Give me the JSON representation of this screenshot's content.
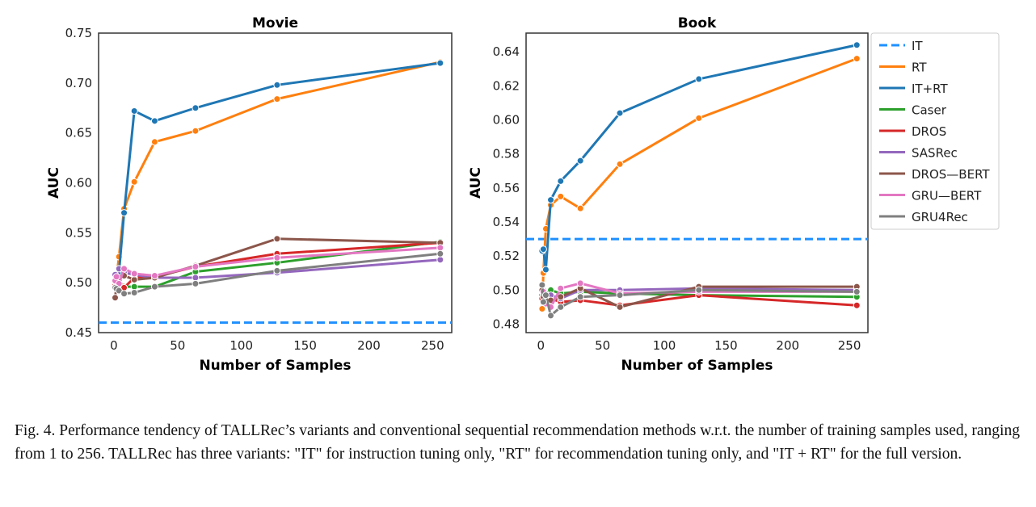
{
  "chart_data": [
    {
      "type": "line",
      "title": "Movie",
      "xlabel": "Number of Samples",
      "ylabel": "AUC",
      "xlim": [
        -12,
        265
      ],
      "ylim": [
        0.45,
        0.75
      ],
      "xticks": [
        0,
        50,
        100,
        150,
        200,
        250
      ],
      "yticks": [
        0.45,
        0.5,
        0.55,
        0.6,
        0.65,
        0.7,
        0.75
      ],
      "x": [
        1,
        2,
        4,
        8,
        16,
        32,
        64,
        128,
        256
      ],
      "series": [
        {
          "name": "IT",
          "values": [
            0.46,
            0.46,
            0.46,
            0.46,
            0.46,
            0.46,
            0.46,
            0.46,
            0.46
          ],
          "dashed": true
        },
        {
          "name": "RT",
          "values": [
            0.5,
            0.505,
            0.526,
            0.574,
            0.601,
            0.641,
            0.652,
            0.684,
            0.721
          ]
        },
        {
          "name": "IT+RT",
          "values": [
            0.495,
            0.5,
            0.51,
            0.57,
            0.672,
            0.662,
            0.675,
            0.698,
            0.72
          ]
        },
        {
          "name": "Caser",
          "values": [
            0.497,
            0.495,
            0.496,
            0.496,
            0.496,
            0.496,
            0.511,
            0.52,
            0.541
          ]
        },
        {
          "name": "DROS",
          "values": [
            0.497,
            0.5,
            0.503,
            0.495,
            0.505,
            0.506,
            0.516,
            0.529,
            0.54
          ]
        },
        {
          "name": "SASRec",
          "values": [
            0.508,
            0.503,
            0.514,
            0.51,
            0.508,
            0.505,
            0.505,
            0.51,
            0.523
          ]
        },
        {
          "name": "DROS—BERT",
          "values": [
            0.485,
            0.497,
            0.505,
            0.507,
            0.503,
            0.505,
            0.517,
            0.544,
            0.54
          ]
        },
        {
          "name": "GRU—BERT",
          "values": [
            0.502,
            0.506,
            0.499,
            0.514,
            0.509,
            0.507,
            0.516,
            0.525,
            0.535
          ]
        },
        {
          "name": "GRU4Rec",
          "values": [
            0.495,
            0.494,
            0.492,
            0.489,
            0.49,
            0.496,
            0.499,
            0.512,
            0.529
          ]
        }
      ]
    },
    {
      "type": "line",
      "title": "Book",
      "xlabel": "Number of Samples",
      "ylabel": "AUC",
      "xlim": [
        -12,
        265
      ],
      "ylim": [
        0.475,
        0.651
      ],
      "xticks": [
        0,
        50,
        100,
        150,
        200,
        250
      ],
      "yticks": [
        0.48,
        0.5,
        0.52,
        0.54,
        0.56,
        0.58,
        0.6,
        0.62,
        0.64
      ],
      "x": [
        1,
        2,
        4,
        8,
        16,
        32,
        64,
        128,
        256
      ],
      "series": [
        {
          "name": "IT",
          "values": [
            0.53,
            0.53,
            0.53,
            0.53,
            0.53,
            0.53,
            0.53,
            0.53,
            0.53
          ],
          "dashed": true
        },
        {
          "name": "RT",
          "values": [
            0.489,
            0.51,
            0.536,
            0.55,
            0.555,
            0.548,
            0.574,
            0.601,
            0.636
          ]
        },
        {
          "name": "IT+RT",
          "values": [
            0.523,
            0.524,
            0.512,
            0.553,
            0.564,
            0.576,
            0.604,
            0.624,
            0.644
          ]
        },
        {
          "name": "Caser",
          "values": [
            0.497,
            0.499,
            0.498,
            0.5,
            0.498,
            0.499,
            0.498,
            0.497,
            0.496
          ]
        },
        {
          "name": "DROS",
          "values": [
            0.495,
            0.496,
            0.494,
            0.495,
            0.493,
            0.494,
            0.491,
            0.497,
            0.491
          ]
        },
        {
          "name": "SASRec",
          "values": [
            0.502,
            0.5,
            0.497,
            0.497,
            0.495,
            0.5,
            0.5,
            0.501,
            0.5
          ]
        },
        {
          "name": "DROS—BERT",
          "values": [
            0.5,
            0.498,
            0.496,
            0.494,
            0.496,
            0.501,
            0.49,
            0.502,
            0.502
          ]
        },
        {
          "name": "GRU—BERT",
          "values": [
            0.503,
            0.499,
            0.492,
            0.49,
            0.501,
            0.504,
            0.498,
            0.499,
            0.499
          ]
        },
        {
          "name": "GRU4Rec",
          "values": [
            0.503,
            0.493,
            0.497,
            0.485,
            0.49,
            0.496,
            0.497,
            0.5,
            0.499
          ]
        }
      ]
    }
  ],
  "legend": {
    "placement": "right",
    "entries": [
      "IT",
      "RT",
      "IT+RT",
      "Caser",
      "DROS",
      "SASRec",
      "DROS—BERT",
      "GRU—BERT",
      "GRU4Rec"
    ]
  },
  "colors": {
    "IT": "#1e90ff",
    "RT": "#ff7f0e",
    "IT+RT": "#1f77b4",
    "Caser": "#2ca02c",
    "DROS": "#d62728",
    "SASRec": "#9467bd",
    "DROS—BERT": "#8c564b",
    "GRU—BERT": "#e377c2",
    "GRU4Rec": "#7f7f7f"
  },
  "caption": "Fig. 4.  Performance tendency of TALLRec’s variants and conventional sequential recommendation methods w.r.t. the number of training samples used, ranging from 1 to 256. TALLRec has three variants: \"IT\" for instruction tuning only, \"RT\" for recommendation tuning only, and \"IT + RT\" for the full version."
}
